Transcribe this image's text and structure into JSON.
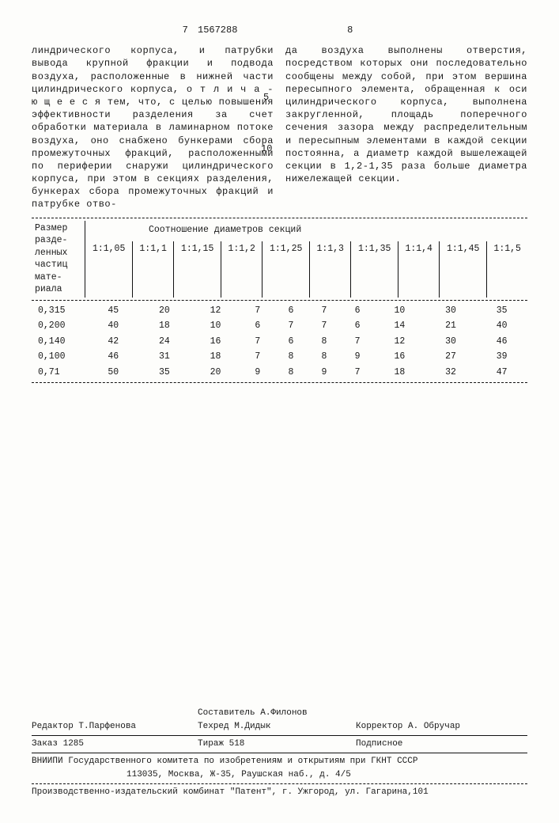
{
  "header": {
    "page_left": "7",
    "doc_number": "1567288",
    "page_right": "8"
  },
  "body": {
    "left_col": "линдрического корпуса, и патрубки вывода крупной фракции и подвода воздуха, расположенные в нижней части цилиндрического корпуса, о т л и ч а - ю щ е е с я  тем, что, с целью повышения эффективности разделения за счет обработки материала в ламинарном потоке воздуха, оно снабжено бункерами сбора промежуточных фракций, расположенными по периферии снаружи цилиндрического корпуса, при этом в секциях разделения, бункерах сбора промежуточных фракций и патрубке отво-",
    "right_col": "да воздуха выполнены отверстия, посредством которых они последовательно сообщены между собой, при этом вершина пересыпного элемента, обращенная к оси цилиндрического корпуса, выполнена закругленной, площадь поперечного сечения зазора между распределительным и пересыпным элементами в каждой секции постоянна, а диаметр каждой вышележащей секции в 1,2-1,35 раза больше диаметра нижележащей секции.",
    "line5": "5",
    "line10": "10"
  },
  "table": {
    "row_header_lines": [
      "Размер",
      "разде-",
      "ленных",
      "частиц",
      "мате-",
      "риала"
    ],
    "group_header": "Соотношение диаметров секций",
    "col_ratios": [
      "1:1,05",
      "1:1,1",
      "1:1,15",
      "1:1,2",
      "1:1,25",
      "1:1,3",
      "1:1,35",
      "1:1,4",
      "1:1,45",
      "1:1,5"
    ],
    "rows": [
      {
        "label": "0,315",
        "cells": [
          "45",
          "20",
          "12",
          "7",
          "6",
          "7",
          "6",
          "10",
          "30",
          "35"
        ]
      },
      {
        "label": "0,200",
        "cells": [
          "40",
          "18",
          "10",
          "6",
          "7",
          "7",
          "6",
          "14",
          "21",
          "40"
        ]
      },
      {
        "label": "0,140",
        "cells": [
          "42",
          "24",
          "16",
          "7",
          "6",
          "8",
          "7",
          "12",
          "30",
          "46"
        ]
      },
      {
        "label": "0,100",
        "cells": [
          "46",
          "31",
          "18",
          "7",
          "8",
          "8",
          "9",
          "16",
          "27",
          "39"
        ]
      },
      {
        "label": "0,71",
        "cells": [
          "50",
          "35",
          "20",
          "9",
          "8",
          "9",
          "7",
          "18",
          "32",
          "47"
        ]
      }
    ]
  },
  "footer": {
    "compiler": "Составитель А.Филонов",
    "editor_label": "Редактор Т.Парфенова",
    "tech": "Техред М.Дидык",
    "corrector": "Корректор А. Обручар",
    "order": "Заказ 1285",
    "tirage": "Тираж 518",
    "subscription": "Подписное",
    "org": "ВНИИПИ Государственного комитета по изобретениям и открытиям при ГКНТ СССР",
    "addr1": "113035, Москва, Ж-35, Раушская наб., д. 4/5",
    "addr2": "Производственно-издательский комбинат \"Патент\", г. Ужгород, ул. Гагарина,101"
  }
}
